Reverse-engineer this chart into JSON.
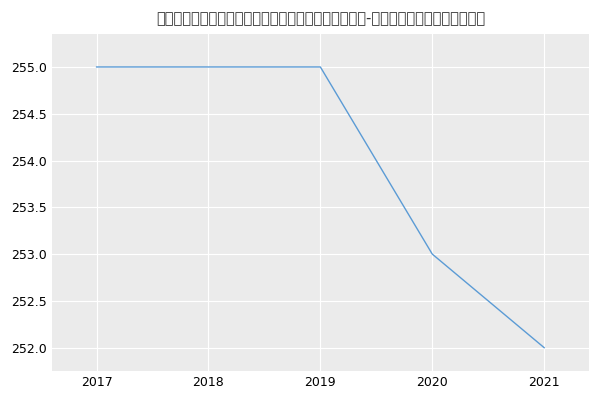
{
  "title": "新疆农业大学林学与园艺学院野生动植物保护与利用（-历年复试）研究生录取分数线",
  "x_values": [
    2017,
    2018,
    2019,
    2020,
    2021
  ],
  "y_values": [
    255,
    255,
    255,
    253,
    252
  ],
  "line_color": "#5b9bd5",
  "bg_color": "#ffffff",
  "plot_bg_color": "#ebebeb",
  "grid_color": "#ffffff",
  "xlim": [
    2016.6,
    2021.4
  ],
  "ylim": [
    251.75,
    255.35
  ],
  "yticks": [
    252.0,
    252.5,
    253.0,
    253.5,
    254.0,
    254.5,
    255.0
  ],
  "xticks": [
    2017,
    2018,
    2019,
    2020,
    2021
  ],
  "title_fontsize": 10.5,
  "tick_fontsize": 9
}
